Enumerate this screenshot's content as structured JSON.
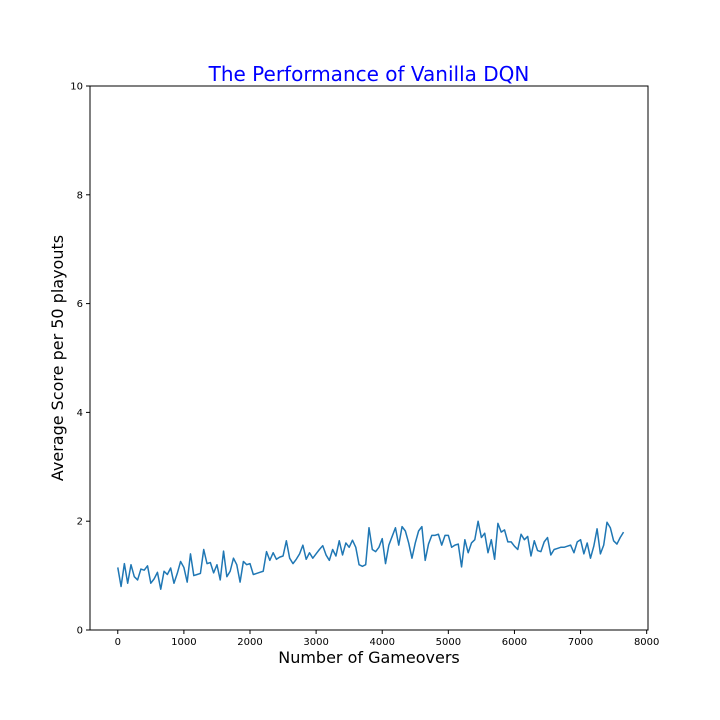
{
  "chart_data": {
    "type": "line",
    "title": "The Performance of Vanilla DQN",
    "title_color": "#0000ff",
    "xlabel": "Number of Gameovers",
    "ylabel": "Average Score per 50 playouts",
    "xlim": [
      -420,
      8020
    ],
    "ylim": [
      0,
      10
    ],
    "xticks": [
      0,
      1000,
      2000,
      3000,
      4000,
      5000,
      6000,
      7000,
      8000
    ],
    "yticks": [
      0,
      2,
      4,
      6,
      8,
      10
    ],
    "grid": false,
    "series": [
      {
        "color": "#1f77b4",
        "x": [
          0,
          50,
          100,
          150,
          200,
          250,
          300,
          350,
          400,
          450,
          500,
          550,
          600,
          650,
          700,
          750,
          800,
          850,
          900,
          950,
          1000,
          1050,
          1100,
          1150,
          1200,
          1250,
          1300,
          1350,
          1400,
          1450,
          1500,
          1550,
          1600,
          1650,
          1700,
          1750,
          1800,
          1850,
          1900,
          1950,
          2000,
          2050,
          2100,
          2150,
          2200,
          2250,
          2300,
          2350,
          2400,
          2450,
          2500,
          2550,
          2600,
          2650,
          2700,
          2750,
          2800,
          2850,
          2900,
          2950,
          3000,
          3050,
          3100,
          3150,
          3200,
          3250,
          3300,
          3350,
          3400,
          3450,
          3500,
          3550,
          3600,
          3650,
          3700,
          3750,
          3800,
          3850,
          3900,
          3950,
          4000,
          4050,
          4100,
          4150,
          4200,
          4250,
          4300,
          4350,
          4400,
          4450,
          4500,
          4550,
          4600,
          4650,
          4700,
          4750,
          4800,
          4850,
          4900,
          4950,
          5000,
          5050,
          5100,
          5150,
          5200,
          5250,
          5300,
          5350,
          5400,
          5450,
          5500,
          5550,
          5600,
          5650,
          5700,
          5750,
          5800,
          5850,
          5900,
          5950,
          6000,
          6050,
          6100,
          6150,
          6200,
          6250,
          6300,
          6350,
          6400,
          6450,
          6500,
          6550,
          6600,
          6650,
          6700,
          6750,
          6800,
          6850,
          6900,
          6950,
          7000,
          7050,
          7100,
          7150,
          7200,
          7250,
          7300,
          7350,
          7400,
          7450,
          7500,
          7550,
          7600,
          7650
        ],
        "values": [
          1.15,
          0.8,
          1.22,
          0.86,
          1.2,
          0.98,
          0.92,
          1.12,
          1.1,
          1.18,
          0.86,
          0.94,
          1.06,
          0.75,
          1.08,
          1.02,
          1.14,
          0.86,
          1.04,
          1.26,
          1.15,
          0.88,
          1.4,
          1.0,
          1.02,
          1.04,
          1.48,
          1.22,
          1.24,
          1.05,
          1.2,
          0.92,
          1.45,
          0.98,
          1.08,
          1.32,
          1.2,
          0.88,
          1.26,
          1.2,
          1.22,
          1.02,
          1.04,
          1.06,
          1.08,
          1.44,
          1.28,
          1.42,
          1.3,
          1.34,
          1.36,
          1.64,
          1.32,
          1.22,
          1.3,
          1.4,
          1.56,
          1.3,
          1.42,
          1.32,
          1.4,
          1.48,
          1.55,
          1.38,
          1.28,
          1.48,
          1.36,
          1.64,
          1.38,
          1.6,
          1.52,
          1.65,
          1.52,
          1.2,
          1.17,
          1.2,
          1.88,
          1.48,
          1.44,
          1.52,
          1.68,
          1.22,
          1.56,
          1.72,
          1.88,
          1.56,
          1.9,
          1.82,
          1.6,
          1.32,
          1.6,
          1.82,
          1.9,
          1.28,
          1.58,
          1.74,
          1.74,
          1.76,
          1.56,
          1.74,
          1.74,
          1.52,
          1.56,
          1.58,
          1.16,
          1.66,
          1.42,
          1.6,
          1.66,
          2.0,
          1.7,
          1.78,
          1.42,
          1.66,
          1.3,
          1.96,
          1.8,
          1.84,
          1.62,
          1.62,
          1.54,
          1.48,
          1.76,
          1.66,
          1.72,
          1.36,
          1.64,
          1.46,
          1.44,
          1.62,
          1.7,
          1.38,
          1.48,
          1.5,
          1.52,
          1.52,
          1.54,
          1.56,
          1.42,
          1.62,
          1.66,
          1.4,
          1.6,
          1.32,
          1.54,
          1.86,
          1.4,
          1.56,
          1.98,
          1.88,
          1.64,
          1.58,
          1.7,
          1.8
        ]
      }
    ]
  }
}
